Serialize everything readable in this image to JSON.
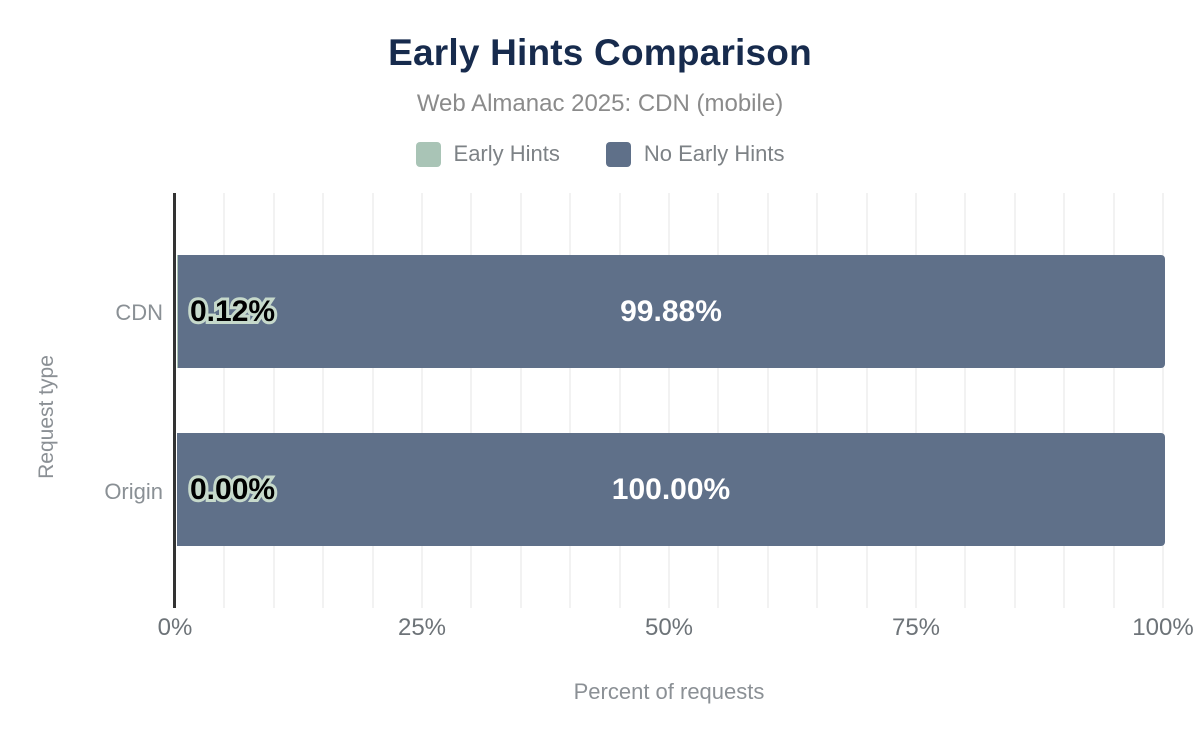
{
  "header": {
    "title": "Early Hints Comparison",
    "subtitle": "Web Almanac 2025: CDN (mobile)"
  },
  "legend": {
    "items": [
      {
        "label": "Early Hints",
        "color": "#a9c4b6"
      },
      {
        "label": "No Early Hints",
        "color": "#5f7089"
      }
    ]
  },
  "chart_data": {
    "type": "bar",
    "orientation": "horizontal",
    "stacked": true,
    "title": "Early Hints Comparison",
    "subtitle": "Web Almanac 2025: CDN (mobile)",
    "categories": [
      "CDN",
      "Origin"
    ],
    "series": [
      {
        "name": "Early Hints",
        "color": "#a9c4b6",
        "values": [
          0.12,
          0.0
        ]
      },
      {
        "name": "No Early Hints",
        "color": "#5f7089",
        "values": [
          99.88,
          100.0
        ]
      }
    ],
    "value_labels": [
      [
        "0.12%",
        "99.88%"
      ],
      [
        "0.00%",
        "100.00%"
      ]
    ],
    "xlabel": "Percent of requests",
    "ylabel": "Request type",
    "xlim": [
      0,
      100
    ],
    "x_ticks": [
      "0%",
      "25%",
      "50%",
      "75%",
      "100%"
    ],
    "x_tick_values": [
      0,
      25,
      50,
      75,
      100
    ],
    "grid_step_pct": 5,
    "grid": "vertical minor gridlines every 5%",
    "legend_position": "top"
  },
  "styles": {
    "title_color": "#172b4d",
    "muted_text": "#8b8b8b",
    "tick_color": "#6d7378",
    "axis_line_color": "#333333",
    "gridline_color": "#f2f2f2",
    "bar_label_light": "#ffffff",
    "bar_label_dark": "#000000",
    "bar_label_halo": "#c6d9cb"
  }
}
